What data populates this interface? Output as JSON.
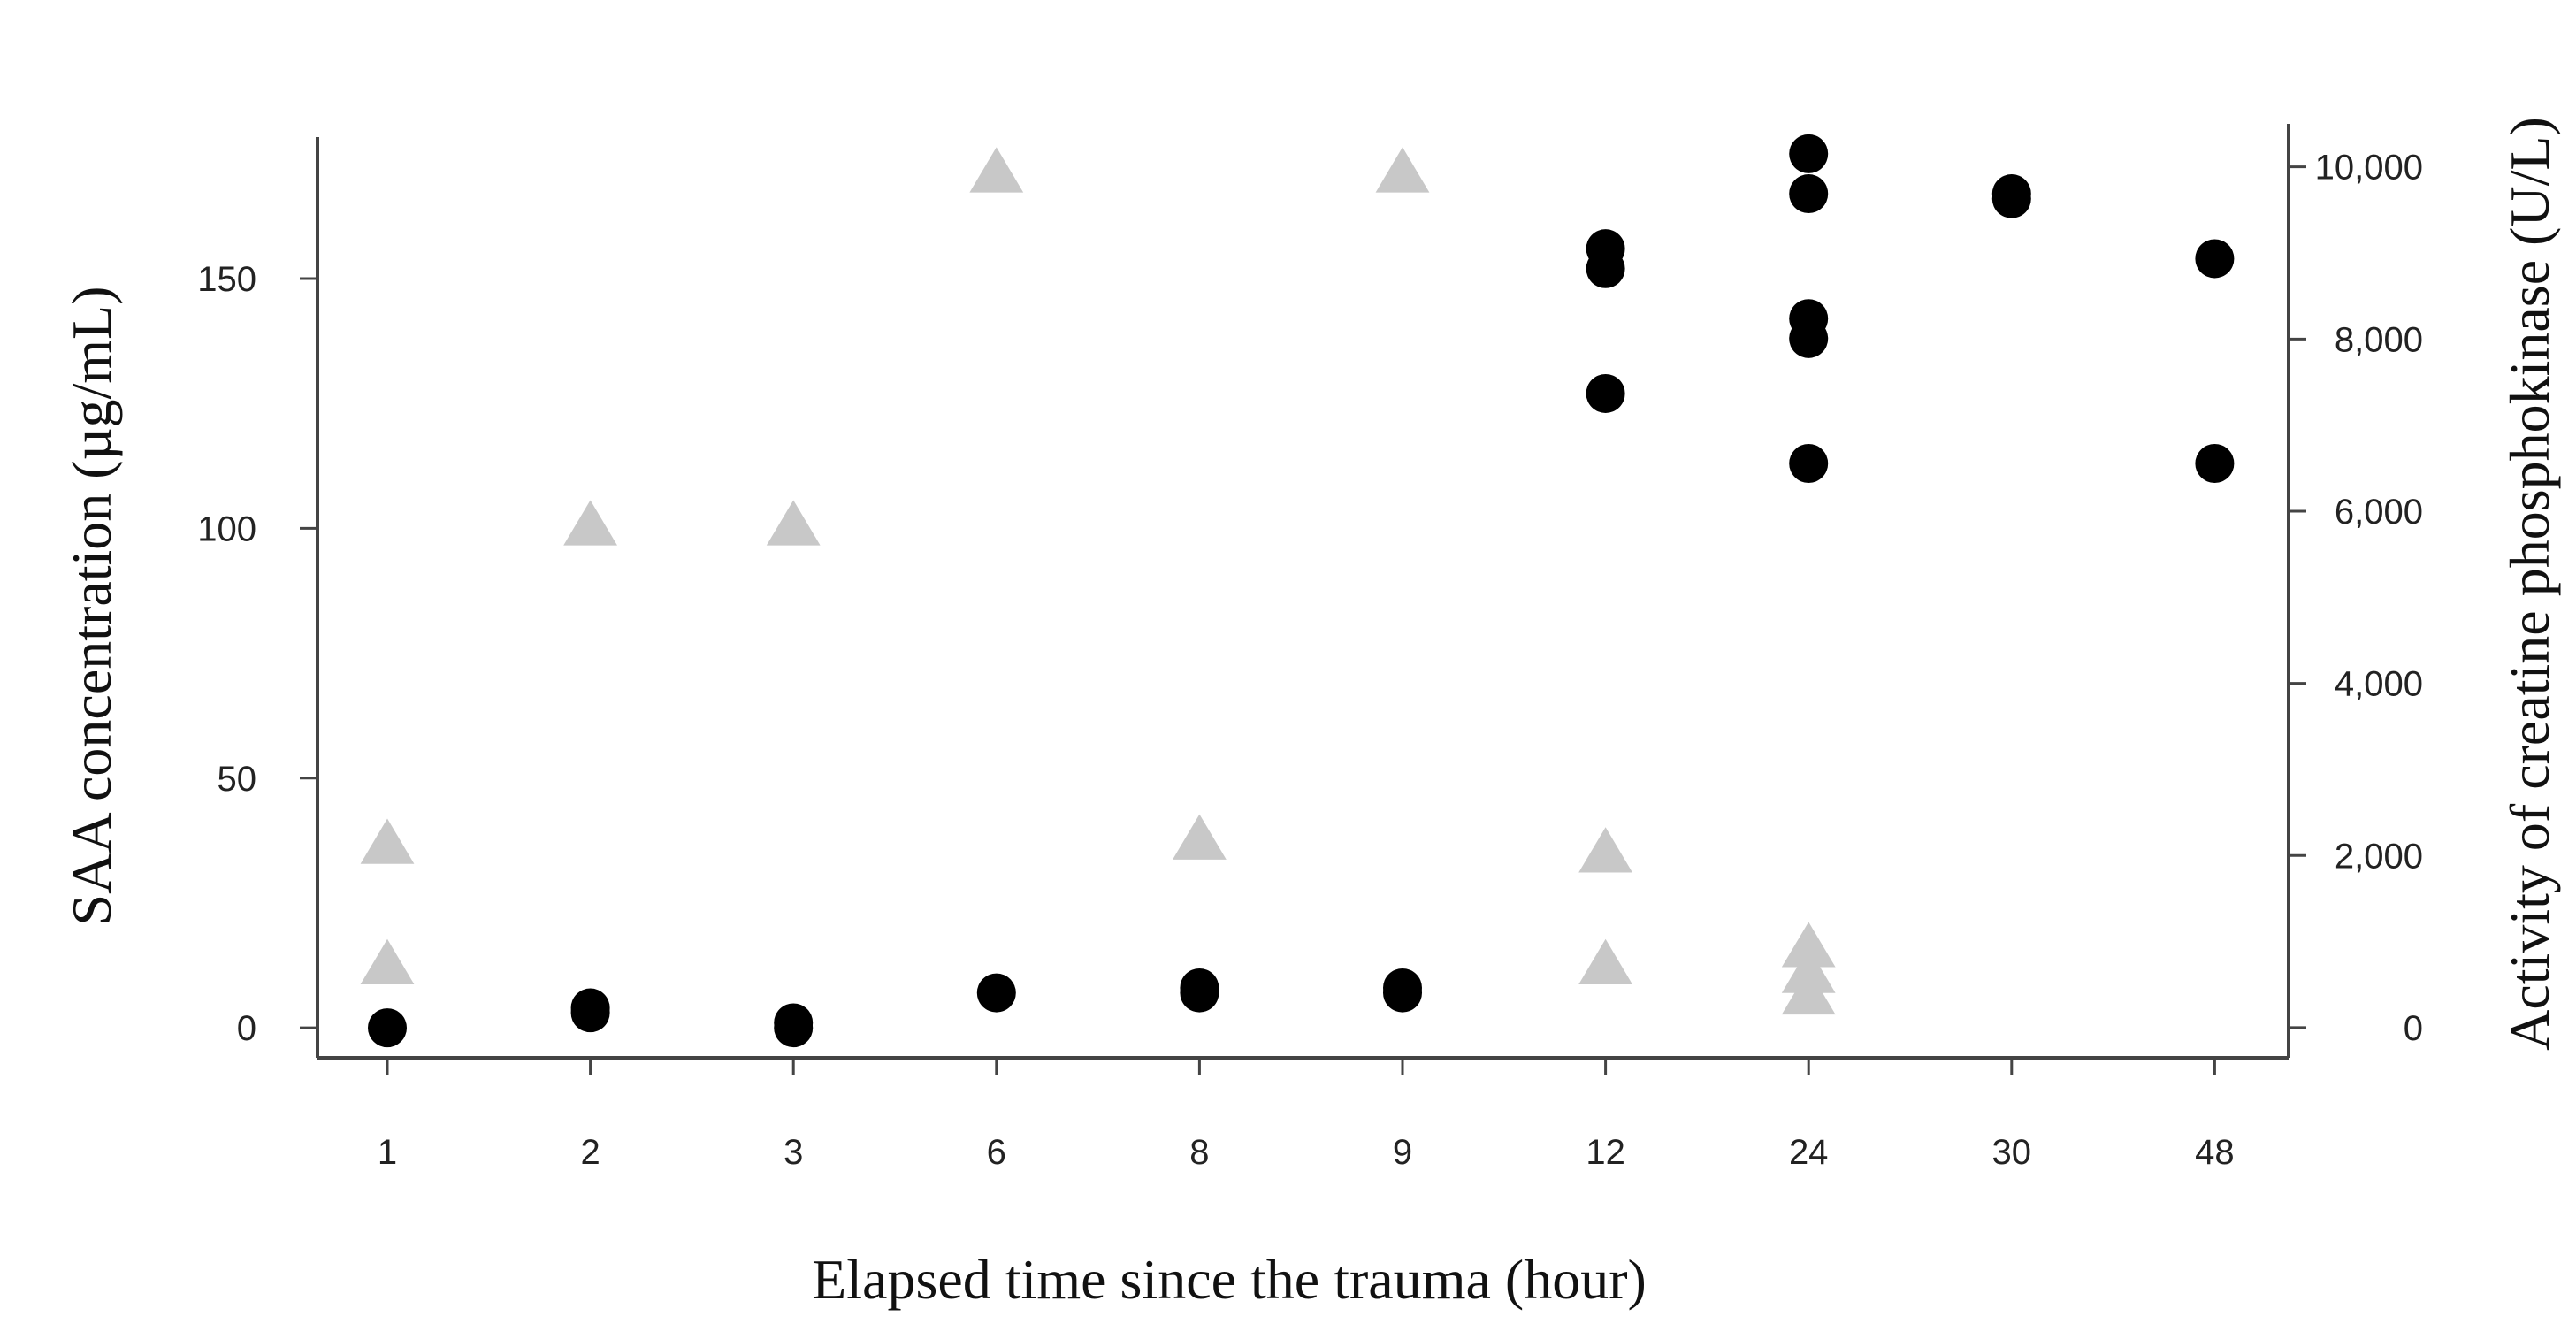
{
  "chart_data": {
    "type": "scatter",
    "title": "",
    "xlabel": "Elapsed time since the trauma (hour)",
    "ylabel_left": "SAA concentration (µg/mL)",
    "ylabel_right": "Activity of  creatine phosphokinase (U/L)",
    "x_categories": [
      "1",
      "2",
      "3",
      "6",
      "8",
      "9",
      "12",
      "24",
      "30",
      "48"
    ],
    "ylim_left": [
      -6,
      181
    ],
    "yticks_left": [
      0,
      50,
      100,
      150
    ],
    "yticks_left_labels": [
      "0",
      "50",
      "100",
      "150"
    ],
    "ylim_right": [
      -350,
      10500
    ],
    "yticks_right": [
      0,
      2000,
      4000,
      6000,
      8000,
      10000
    ],
    "yticks_right_labels": [
      "0",
      "2,000",
      "4,000",
      "6,000",
      "8,000",
      "10,000"
    ],
    "grid": false,
    "legend": "none",
    "series": [
      {
        "marker": "circle",
        "color": "#000000",
        "axis": "left",
        "points": [
          {
            "x": "1",
            "y": 0
          },
          {
            "x": "2",
            "y": 3
          },
          {
            "x": "2",
            "y": 4
          },
          {
            "x": "3",
            "y": 0
          },
          {
            "x": "3",
            "y": 1
          },
          {
            "x": "6",
            "y": 7
          },
          {
            "x": "8",
            "y": 7
          },
          {
            "x": "8",
            "y": 8
          },
          {
            "x": "9",
            "y": 7
          },
          {
            "x": "9",
            "y": 8
          },
          {
            "x": "12",
            "y": 156
          },
          {
            "x": "12",
            "y": 152
          },
          {
            "x": "12",
            "y": 127
          },
          {
            "x": "24",
            "y": 175
          },
          {
            "x": "24",
            "y": 167
          },
          {
            "x": "24",
            "y": 142
          },
          {
            "x": "24",
            "y": 138
          },
          {
            "x": "24",
            "y": 113
          },
          {
            "x": "30",
            "y": 166
          },
          {
            "x": "30",
            "y": 167
          },
          {
            "x": "48",
            "y": 154
          },
          {
            "x": "48",
            "y": 113
          }
        ]
      },
      {
        "marker": "triangle",
        "color": "#c8c8c8",
        "axis": "right",
        "points": [
          {
            "x": "1",
            "y": 2100
          },
          {
            "x": "1",
            "y": 700
          },
          {
            "x": "2",
            "y": 5800
          },
          {
            "x": "3",
            "y": 5800
          },
          {
            "x": "6",
            "y": 9900
          },
          {
            "x": "8",
            "y": 2150
          },
          {
            "x": "9",
            "y": 9900
          },
          {
            "x": "12",
            "y": 2000
          },
          {
            "x": "12",
            "y": 700
          },
          {
            "x": "24",
            "y": 900
          },
          {
            "x": "24",
            "y": 600
          },
          {
            "x": "24",
            "y": 350
          }
        ]
      }
    ]
  }
}
